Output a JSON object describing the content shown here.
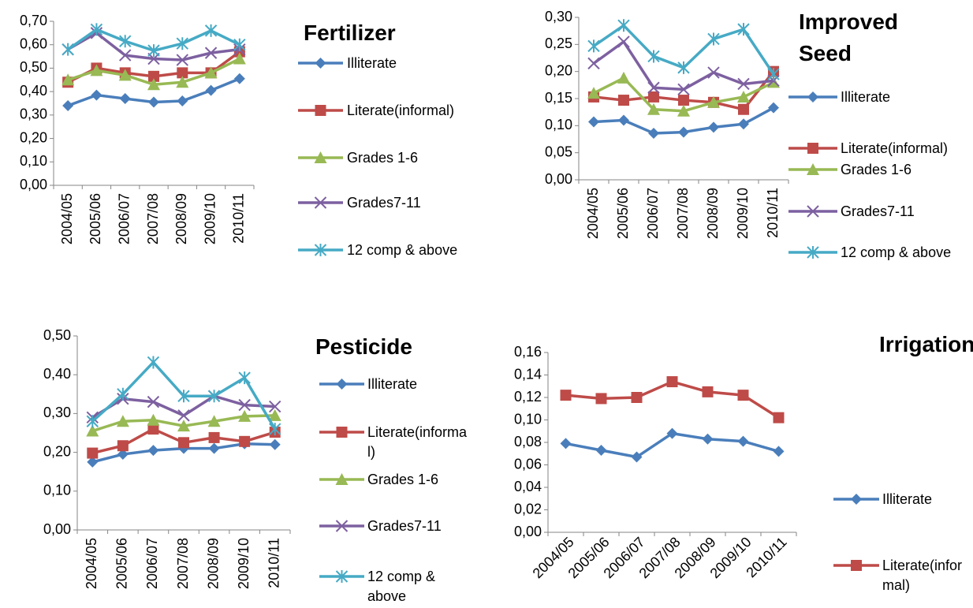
{
  "chart_data": [
    {
      "type": "line",
      "title": "Fertilizer",
      "categories": [
        "2004/05",
        "2005/06",
        "2006/07",
        "2007/08",
        "2008/09",
        "2009/10",
        "2010/11"
      ],
      "ylim": [
        0,
        0.7
      ],
      "yticks": [
        {
          "value": 0,
          "label": "0,00"
        },
        {
          "value": 0.1,
          "label": "0,10"
        },
        {
          "value": 0.2,
          "label": "0,20"
        },
        {
          "value": 0.3,
          "label": "0,30"
        },
        {
          "value": 0.4,
          "label": "0,40"
        },
        {
          "value": 0.5,
          "label": "0,50"
        },
        {
          "value": 0.6,
          "label": "0,60"
        },
        {
          "value": 0.7,
          "label": "0,70"
        }
      ],
      "series": [
        {
          "name": "Illiterate",
          "color": "#4a7ebb",
          "marker": "diamond",
          "values": [
            0.34,
            0.385,
            0.37,
            0.355,
            0.36,
            0.405,
            0.455
          ]
        },
        {
          "name": "Literate(informal)",
          "color": "#be4b48",
          "marker": "square",
          "values": [
            0.44,
            0.5,
            0.48,
            0.465,
            0.48,
            0.48,
            0.57
          ]
        },
        {
          "name": "Grades 1-6",
          "color": "#98b954",
          "marker": "triangle",
          "values": [
            0.45,
            0.49,
            0.47,
            0.43,
            0.44,
            0.48,
            0.54
          ]
        },
        {
          "name": "Grades7-11",
          "color": "#7d60a0",
          "marker": "x",
          "values": [
            0.58,
            0.65,
            0.555,
            0.54,
            0.535,
            0.565,
            0.58
          ]
        },
        {
          "name": "12 comp & above",
          "color": "#46aac5",
          "marker": "star",
          "values": [
            0.58,
            0.665,
            0.615,
            0.575,
            0.605,
            0.66,
            0.6
          ]
        }
      ]
    },
    {
      "type": "line",
      "title": "Improved Seed",
      "categories": [
        "2004/05",
        "2005/06",
        "2006/07",
        "2007/08",
        "2008/09",
        "2009/10",
        "2010/11"
      ],
      "ylim": [
        0,
        0.3
      ],
      "yticks": [
        {
          "value": 0,
          "label": "0,00"
        },
        {
          "value": 0.05,
          "label": "0,05"
        },
        {
          "value": 0.1,
          "label": "0,10"
        },
        {
          "value": 0.15,
          "label": "0,15"
        },
        {
          "value": 0.2,
          "label": "0,20"
        },
        {
          "value": 0.25,
          "label": "0,25"
        },
        {
          "value": 0.3,
          "label": "0,30"
        }
      ],
      "series": [
        {
          "name": "Illiterate",
          "color": "#4a7ebb",
          "marker": "diamond",
          "values": [
            0.107,
            0.11,
            0.086,
            0.088,
            0.097,
            0.103,
            0.133
          ]
        },
        {
          "name": "Literate(informal)",
          "color": "#be4b48",
          "marker": "square",
          "values": [
            0.153,
            0.147,
            0.153,
            0.147,
            0.143,
            0.13,
            0.2
          ]
        },
        {
          "name": "Grades 1-6",
          "color": "#98b954",
          "marker": "triangle",
          "values": [
            0.16,
            0.188,
            0.13,
            0.127,
            0.143,
            0.153,
            0.18
          ]
        },
        {
          "name": "Grades7-11",
          "color": "#7d60a0",
          "marker": "x",
          "values": [
            0.215,
            0.255,
            0.17,
            0.167,
            0.198,
            0.177,
            0.183
          ]
        },
        {
          "name": "12 comp & above",
          "color": "#46aac5",
          "marker": "star",
          "values": [
            0.247,
            0.285,
            0.228,
            0.207,
            0.26,
            0.278,
            0.195
          ]
        }
      ]
    },
    {
      "type": "line",
      "title": "Pesticide",
      "categories": [
        "2004/05",
        "2005/06",
        "2006/07",
        "2007/08",
        "2008/09",
        "2009/10",
        "2010/11"
      ],
      "ylim": [
        0,
        0.5
      ],
      "yticks": [
        {
          "value": 0,
          "label": "0,00"
        },
        {
          "value": 0.1,
          "label": "0,10"
        },
        {
          "value": 0.2,
          "label": "0,20"
        },
        {
          "value": 0.3,
          "label": "0,30"
        },
        {
          "value": 0.4,
          "label": "0,40"
        },
        {
          "value": 0.5,
          "label": "0,50"
        }
      ],
      "series": [
        {
          "name": "Illiterate",
          "color": "#4a7ebb",
          "marker": "diamond",
          "values": [
            0.175,
            0.195,
            0.205,
            0.21,
            0.21,
            0.222,
            0.22
          ]
        },
        {
          "name": "Literate(informal)",
          "color": "#be4b48",
          "marker": "square",
          "values": [
            0.198,
            0.217,
            0.26,
            0.225,
            0.238,
            0.228,
            0.252
          ]
        },
        {
          "name": "Grades 1-6",
          "color": "#98b954",
          "marker": "triangle",
          "values": [
            0.255,
            0.28,
            0.283,
            0.268,
            0.28,
            0.293,
            0.295
          ]
        },
        {
          "name": "Grades7-11",
          "color": "#7d60a0",
          "marker": "x",
          "values": [
            0.29,
            0.338,
            0.33,
            0.295,
            0.345,
            0.322,
            0.318
          ]
        },
        {
          "name": "12 comp & above",
          "color": "#46aac5",
          "marker": "star",
          "values": [
            0.28,
            0.35,
            0.432,
            0.345,
            0.345,
            0.392,
            0.26
          ]
        }
      ]
    },
    {
      "type": "line",
      "title": "Irrigation",
      "categories": [
        "2004/05",
        "2005/06",
        "2006/07",
        "2007/08",
        "2008/09",
        "2009/10",
        "2010/11"
      ],
      "ylim": [
        0,
        0.16
      ],
      "yticks": [
        {
          "value": 0,
          "label": "0,00"
        },
        {
          "value": 0.02,
          "label": "0,02"
        },
        {
          "value": 0.04,
          "label": "0,04"
        },
        {
          "value": 0.06,
          "label": "0,06"
        },
        {
          "value": 0.08,
          "label": "0,08"
        },
        {
          "value": 0.1,
          "label": "0,10"
        },
        {
          "value": 0.12,
          "label": "0,12"
        },
        {
          "value": 0.14,
          "label": "0,14"
        },
        {
          "value": 0.16,
          "label": "0,16"
        }
      ],
      "series": [
        {
          "name": "Illiterate",
          "color": "#4a7ebb",
          "marker": "diamond",
          "values": [
            0.079,
            0.073,
            0.067,
            0.088,
            0.083,
            0.081,
            0.072
          ]
        },
        {
          "name": "Literate(informal)",
          "color": "#be4b48",
          "marker": "square",
          "values": [
            0.122,
            0.119,
            0.12,
            0.134,
            0.125,
            0.122,
            0.102
          ]
        }
      ]
    }
  ]
}
